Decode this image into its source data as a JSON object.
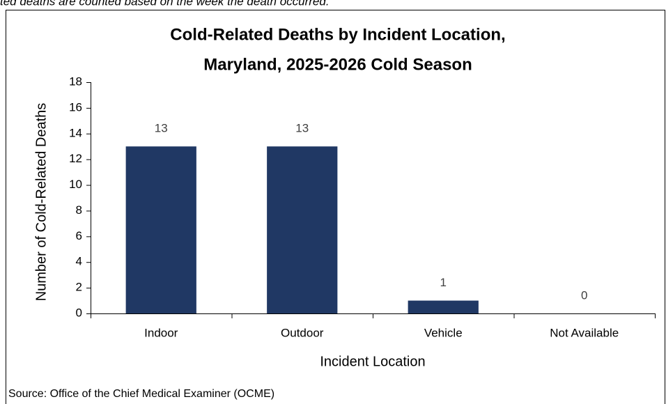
{
  "note": "ted deaths are counted based on the week the death occurred.",
  "chart_data": {
    "type": "bar",
    "title": [
      "Cold-Related Deaths by Incident Location,",
      "Maryland, 2025-2026 Cold Season"
    ],
    "x_label": "Incident Location",
    "y_label": "Number of Cold-Related Deaths",
    "categories": [
      "Indoor",
      "Outdoor",
      "Vehicle",
      "Not Available"
    ],
    "values": [
      13,
      13,
      1,
      0
    ],
    "color": "#203864",
    "ylim": [
      0,
      18
    ],
    "yticks": [
      0,
      2,
      4,
      6,
      8,
      10,
      12,
      14,
      16,
      18
    ],
    "grid": false,
    "source": "Source: Office of the Chief Medical Examiner (OCME)"
  }
}
